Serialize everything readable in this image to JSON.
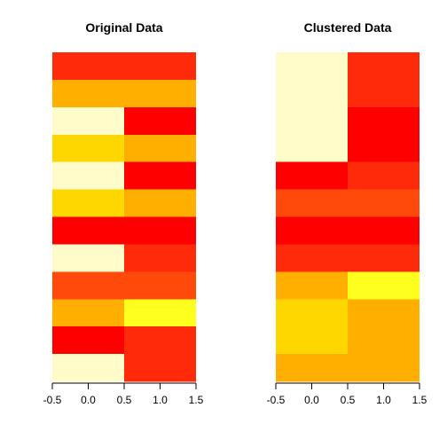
{
  "palette": {
    "red": "#FF0000",
    "red_orange": "#FF2A0A",
    "orange_red": "#FF4A0C",
    "orange": "#FFAF00",
    "gold": "#FFD700",
    "yellow": "#FFFF1E",
    "cream": "#FFFCCA"
  },
  "chart_data": [
    {
      "type": "heatmap",
      "title": "Original Data",
      "xlim": [
        -0.5,
        1.5
      ],
      "ylim": [
        -0.5,
        11.5
      ],
      "x_ticks": [
        -0.5,
        0.0,
        0.5,
        1.0,
        1.5
      ],
      "x_tick_labels": [
        "-0.5",
        "0.0",
        "0.5",
        "1.0",
        "1.5"
      ],
      "y_axis_shown": false,
      "grid": false,
      "columns": [
        0,
        1
      ],
      "rows_top_to_bottom": [
        [
          "red_orange",
          "red_orange"
        ],
        [
          "orange",
          "orange"
        ],
        [
          "cream",
          "red"
        ],
        [
          "gold",
          "orange"
        ],
        [
          "cream",
          "red"
        ],
        [
          "gold",
          "orange"
        ],
        [
          "red",
          "red"
        ],
        [
          "cream",
          "red_orange"
        ],
        [
          "orange_red",
          "orange_red"
        ],
        [
          "orange",
          "yellow"
        ],
        [
          "red",
          "red_orange"
        ],
        [
          "cream",
          "red_orange"
        ]
      ]
    },
    {
      "type": "heatmap",
      "title": "Clustered Data",
      "xlim": [
        -0.5,
        1.5
      ],
      "ylim": [
        -0.5,
        11.5
      ],
      "x_ticks": [
        -0.5,
        0.0,
        0.5,
        1.0,
        1.5
      ],
      "x_tick_labels": [
        "-0.5",
        "0.0",
        "0.5",
        "1.0",
        "1.5"
      ],
      "y_axis_shown": false,
      "grid": false,
      "columns": [
        0,
        1
      ],
      "rows_top_to_bottom": [
        [
          "cream",
          "red_orange"
        ],
        [
          "cream",
          "red_orange"
        ],
        [
          "cream",
          "red"
        ],
        [
          "cream",
          "red"
        ],
        [
          "red",
          "red_orange"
        ],
        [
          "orange_red",
          "orange_red"
        ],
        [
          "red",
          "red"
        ],
        [
          "red_orange",
          "red_orange"
        ],
        [
          "orange",
          "yellow"
        ],
        [
          "gold",
          "orange"
        ],
        [
          "gold",
          "orange"
        ],
        [
          "orange",
          "orange"
        ]
      ]
    }
  ]
}
